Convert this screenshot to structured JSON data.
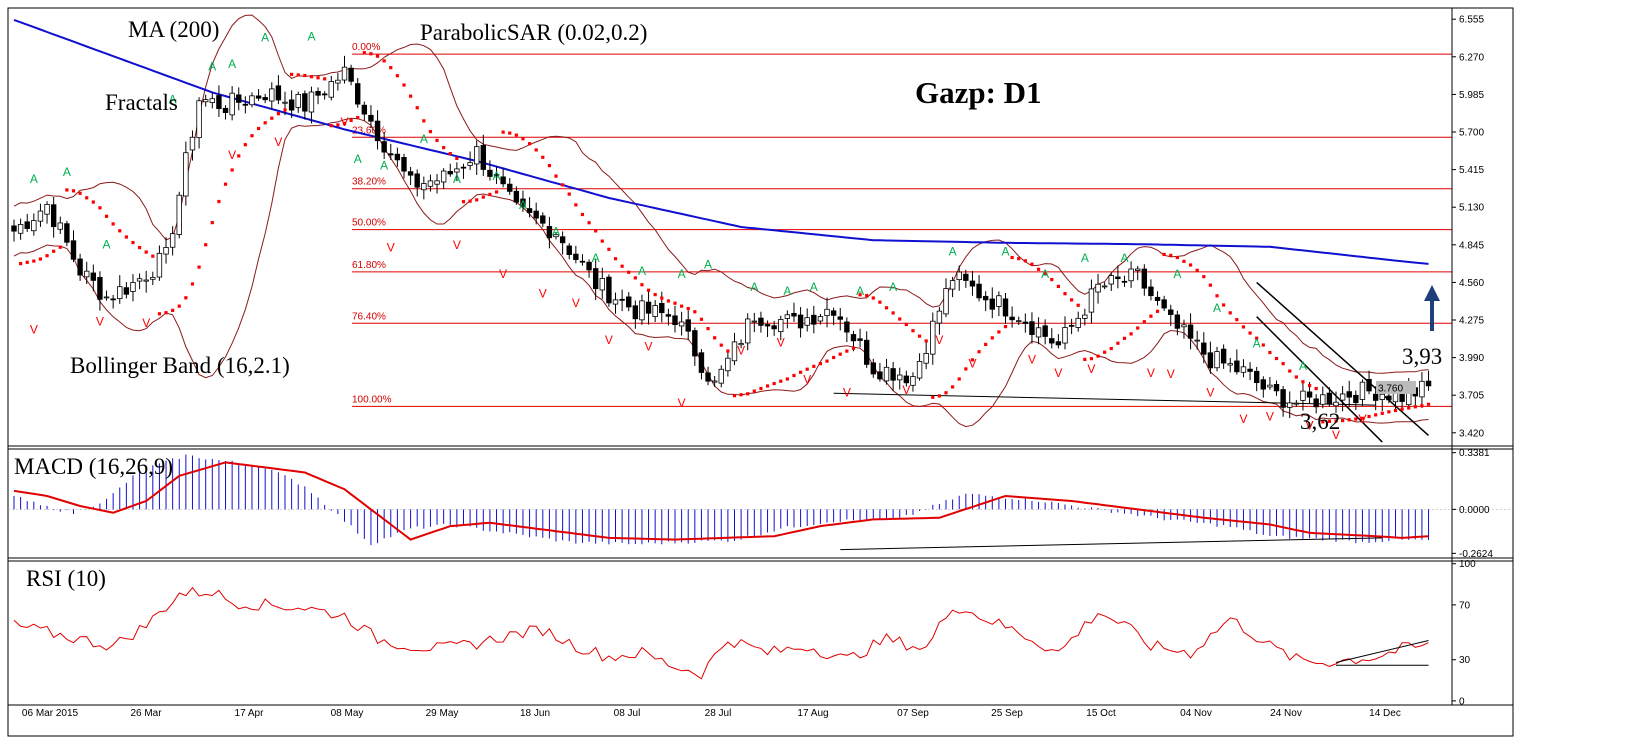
{
  "chart_data": {
    "type": "candlestick",
    "title": "Gazp: D1",
    "labels": {
      "ma": "MA (200)",
      "fractals": "Fractals",
      "sar": "ParabolicSAR (0.02,0.2)",
      "bollinger": "Bollinger Band (16,2.1)",
      "macd": "MACD (16,26,9)",
      "rsi": "RSI (10)",
      "support": "3,62",
      "resistance": "3,93",
      "last_price": "3.760"
    },
    "x_ticks": [
      "06 Mar 2015",
      "26 Mar",
      "17 Apr",
      "08 May",
      "29 May",
      "18 Jun",
      "08 Jul",
      "28 Jul",
      "17 Aug",
      "07 Sep",
      "25 Sep",
      "15 Oct",
      "04 Nov",
      "24 Nov",
      "14 Dec"
    ],
    "price_axis": {
      "ylim": [
        3.32,
        6.64
      ],
      "ticks": [
        "6.555",
        "6.270",
        "5.985",
        "5.700",
        "5.415",
        "5.130",
        "4.845",
        "4.560",
        "4.275",
        "3.990",
        "3.705",
        "3.420"
      ],
      "tick_values": [
        6.555,
        6.27,
        5.985,
        5.7,
        5.415,
        5.13,
        4.845,
        4.56,
        4.275,
        3.99,
        3.705,
        3.42
      ]
    },
    "macd_axis": {
      "ylim": [
        -0.29,
        0.36
      ],
      "ticks": [
        "0.3381",
        "0.0000",
        "-0.2624"
      ],
      "tick_values": [
        0.3381,
        0,
        -0.2624
      ]
    },
    "rsi_axis": {
      "ylim": [
        -3,
        102
      ],
      "ticks": [
        "100",
        "70",
        "30",
        "0"
      ],
      "tick_values": [
        100,
        70,
        30,
        0
      ]
    },
    "fibonacci": {
      "levels": [
        "0.00%",
        "23.60%",
        "38.20%",
        "50.00%",
        "61.80%",
        "76.40%",
        "100.00%"
      ],
      "prices": [
        6.29,
        5.66,
        5.27,
        4.96,
        4.64,
        4.25,
        3.62
      ]
    },
    "close_anchors": {
      "x": [
        0,
        5,
        10,
        14,
        18,
        23,
        28,
        32,
        38,
        44,
        50,
        55,
        60,
        65,
        70,
        76,
        82,
        88,
        94,
        100,
        106,
        112,
        118,
        124,
        130,
        136,
        142,
        147,
        152,
        158,
        164,
        170,
        175,
        181,
        186,
        190,
        194,
        198,
        202,
        206,
        210,
        214
      ],
      "y": [
        4.95,
        5.15,
        4.65,
        4.45,
        4.55,
        4.75,
        5.95,
        5.9,
        6.0,
        5.9,
        6.15,
        5.7,
        5.3,
        5.35,
        5.55,
        5.1,
        4.95,
        4.55,
        4.35,
        4.3,
        3.78,
        4.32,
        4.25,
        4.38,
        3.92,
        3.85,
        4.6,
        4.45,
        4.32,
        4.08,
        4.52,
        4.6,
        4.25,
        3.98,
        3.88,
        3.72,
        3.65,
        3.68,
        3.72,
        3.74,
        3.7,
        3.76
      ]
    },
    "ma200": {
      "x": [
        0,
        30,
        50,
        70,
        90,
        110,
        130,
        150,
        170,
        190,
        210,
        214
      ],
      "y": [
        6.55,
        6.0,
        5.72,
        5.48,
        5.2,
        4.98,
        4.88,
        4.86,
        4.85,
        4.83,
        4.72,
        4.7
      ]
    },
    "macd_line": {
      "x": [
        0,
        5,
        10,
        15,
        20,
        25,
        32,
        38,
        44,
        50,
        60,
        66,
        72,
        80,
        90,
        100,
        115,
        122,
        130,
        140,
        150,
        160,
        170,
        180,
        190,
        196,
        206,
        210,
        214
      ],
      "y": [
        0.11,
        0.08,
        0.02,
        -0.02,
        0.05,
        0.2,
        0.28,
        0.25,
        0.22,
        0.12,
        -0.18,
        -0.1,
        -0.08,
        -0.12,
        -0.17,
        -0.18,
        -0.16,
        -0.1,
        -0.06,
        -0.05,
        0.08,
        0.05,
        0.0,
        -0.05,
        -0.09,
        -0.14,
        -0.16,
        -0.17,
        -0.16
      ]
    },
    "rsi": {
      "x": [
        0,
        5,
        10,
        15,
        20,
        25,
        30,
        33,
        38,
        44,
        50,
        55,
        60,
        65,
        70,
        75,
        80,
        85,
        90,
        95,
        100,
        104,
        108,
        114,
        120,
        126,
        132,
        138,
        142,
        147,
        152,
        158,
        164,
        168,
        172,
        178,
        184,
        190,
        194,
        198,
        202,
        206,
        210,
        214
      ],
      "y": [
        55,
        50,
        45,
        40,
        55,
        78,
        80,
        72,
        70,
        68,
        62,
        45,
        40,
        38,
        42,
        48,
        52,
        40,
        32,
        35,
        25,
        20,
        45,
        35,
        40,
        30,
        45,
        38,
        70,
        60,
        50,
        35,
        65,
        55,
        40,
        35,
        60,
        40,
        30,
        28,
        30,
        32,
        38,
        40
      ]
    },
    "swing_lows": {
      "x": [
        3,
        13,
        20,
        33,
        40,
        50,
        57,
        67,
        74,
        80,
        85,
        90,
        96,
        101,
        110,
        116,
        120,
        126,
        135,
        140,
        145,
        154,
        158,
        163,
        172,
        175,
        181,
        186,
        190,
        196,
        200,
        204
      ],
      "y": [
        4.28,
        4.34,
        4.33,
        5.6,
        5.7,
        5.85,
        4.9,
        4.92,
        4.7,
        4.55,
        4.48,
        4.2,
        4.15,
        3.72,
        4.12,
        4.18,
        3.9,
        3.8,
        3.82,
        4.2,
        4.02,
        4.05,
        3.95,
        3.98,
        3.95,
        3.94,
        3.8,
        3.6,
        3.62,
        3.55,
        3.48,
        3.6
      ]
    },
    "swing_highs": {
      "x": [
        3,
        8,
        14,
        24,
        30,
        33,
        38,
        45,
        52,
        56,
        62,
        67,
        73,
        77,
        82,
        88,
        95,
        101,
        105,
        112,
        117,
        121,
        128,
        133,
        142,
        150,
        156,
        162,
        168,
        176,
        182,
        188,
        195
      ],
      "y": [
        5.3,
        5.35,
        4.8,
        5.9,
        6.15,
        6.17,
        6.37,
        6.38,
        5.45,
        5.4,
        5.6,
        5.3,
        5.32,
        5.1,
        4.9,
        4.7,
        4.6,
        4.58,
        4.65,
        4.48,
        4.45,
        4.48,
        4.45,
        4.48,
        4.75,
        4.75,
        4.58,
        4.7,
        4.7,
        4.58,
        4.32,
        4.05,
        3.88
      ]
    }
  }
}
